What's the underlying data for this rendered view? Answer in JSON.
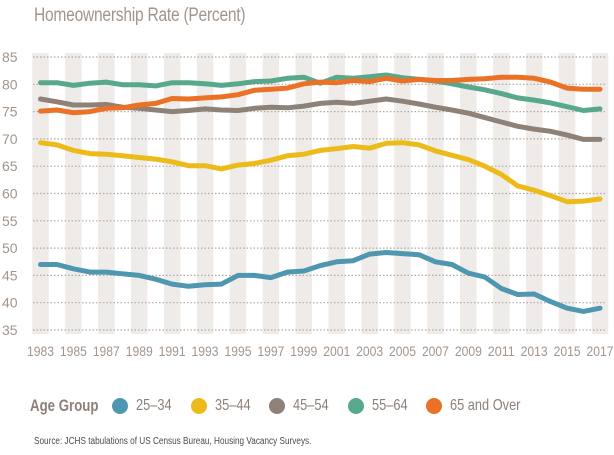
{
  "chart_data": {
    "type": "line",
    "title": "Homeownership Rate (Percent)",
    "xlabel": "",
    "ylabel": "",
    "x": [
      1983,
      1984,
      1985,
      1986,
      1987,
      1988,
      1989,
      1990,
      1991,
      1992,
      1993,
      1994,
      1995,
      1996,
      1997,
      1998,
      1999,
      2000,
      2001,
      2002,
      2003,
      2004,
      2005,
      2006,
      2007,
      2008,
      2009,
      2010,
      2011,
      2012,
      2013,
      2014,
      2015,
      2016,
      2017
    ],
    "x_tick_labels": [
      "1983",
      "1985",
      "1987",
      "1989",
      "1991",
      "1993",
      "1995",
      "1997",
      "1999",
      "2001",
      "2003",
      "2005",
      "2007",
      "2009",
      "2011",
      "2013",
      "2015",
      "2017"
    ],
    "y_ticks": [
      35,
      40,
      45,
      50,
      55,
      60,
      65,
      70,
      75,
      80,
      85
    ],
    "ylim": [
      35,
      85
    ],
    "grid": "horizontal dotted, alternating vertical year bands",
    "legend": {
      "title": "Age Group",
      "placement": "bottom"
    },
    "series": [
      {
        "name": "25–34",
        "color": "#4f97b0",
        "values": [
          47.0,
          47.0,
          46.2,
          45.6,
          45.6,
          45.3,
          45.0,
          44.3,
          43.4,
          43.0,
          43.3,
          43.4,
          45.0,
          45.0,
          44.6,
          45.6,
          45.8,
          46.8,
          47.5,
          47.7,
          48.9,
          49.2,
          49.0,
          48.8,
          47.5,
          47.0,
          45.4,
          44.7,
          42.6,
          41.5,
          41.6,
          40.2,
          39.0,
          38.4,
          39.0
        ]
      },
      {
        "name": "35–44",
        "color": "#ecbb1a",
        "values": [
          69.3,
          68.9,
          67.9,
          67.3,
          67.2,
          66.9,
          66.6,
          66.3,
          65.8,
          65.1,
          65.1,
          64.5,
          65.2,
          65.5,
          66.1,
          66.9,
          67.2,
          67.9,
          68.2,
          68.6,
          68.3,
          69.2,
          69.3,
          68.9,
          67.8,
          67.0,
          66.2,
          65.0,
          63.5,
          61.4,
          60.6,
          59.6,
          58.5,
          58.6,
          59.0
        ]
      },
      {
        "name": "45–54",
        "color": "#8e8177",
        "values": [
          77.3,
          76.8,
          76.2,
          76.2,
          76.3,
          75.8,
          75.6,
          75.3,
          75.0,
          75.2,
          75.5,
          75.3,
          75.2,
          75.6,
          75.8,
          75.7,
          76.0,
          76.5,
          76.7,
          76.5,
          76.9,
          77.3,
          76.9,
          76.4,
          75.8,
          75.3,
          74.7,
          73.9,
          73.1,
          72.3,
          71.8,
          71.4,
          70.7,
          69.9,
          69.9
        ]
      },
      {
        "name": "55–64",
        "color": "#58a88c",
        "values": [
          80.3,
          80.3,
          79.8,
          80.2,
          80.4,
          79.9,
          79.9,
          79.7,
          80.3,
          80.3,
          80.1,
          79.8,
          80.1,
          80.5,
          80.6,
          81.1,
          81.3,
          80.2,
          81.3,
          81.1,
          81.4,
          81.7,
          81.2,
          80.9,
          80.6,
          80.1,
          79.5,
          79.0,
          78.3,
          77.5,
          77.1,
          76.6,
          75.9,
          75.2,
          75.5
        ]
      },
      {
        "name": "65 and Over",
        "color": "#ea7125",
        "values": [
          75.1,
          75.3,
          74.8,
          75.0,
          75.6,
          75.7,
          76.2,
          76.5,
          77.4,
          77.3,
          77.5,
          77.7,
          78.1,
          78.9,
          79.1,
          79.3,
          80.1,
          80.4,
          80.3,
          80.7,
          80.5,
          81.1,
          80.6,
          80.9,
          80.7,
          80.7,
          80.9,
          81.0,
          81.3,
          81.3,
          81.1,
          80.4,
          79.3,
          79.1,
          79.1
        ]
      }
    ]
  },
  "legend_title": "Age Group",
  "legend_items": [
    {
      "label": "25–34",
      "color": "#4f97b0"
    },
    {
      "label": "35–44",
      "color": "#ecbb1a"
    },
    {
      "label": "45–54",
      "color": "#8e8177"
    },
    {
      "label": "55–64",
      "color": "#58a88c"
    },
    {
      "label": "65 and Over",
      "color": "#ea7125"
    }
  ],
  "source": "Source: JCHS tabulations of US Census Bureau, Housing Vacancy Surveys.",
  "colors": {
    "band": "#efebe8",
    "grid": "#b3a99f",
    "tick_text": "#a2958c"
  }
}
